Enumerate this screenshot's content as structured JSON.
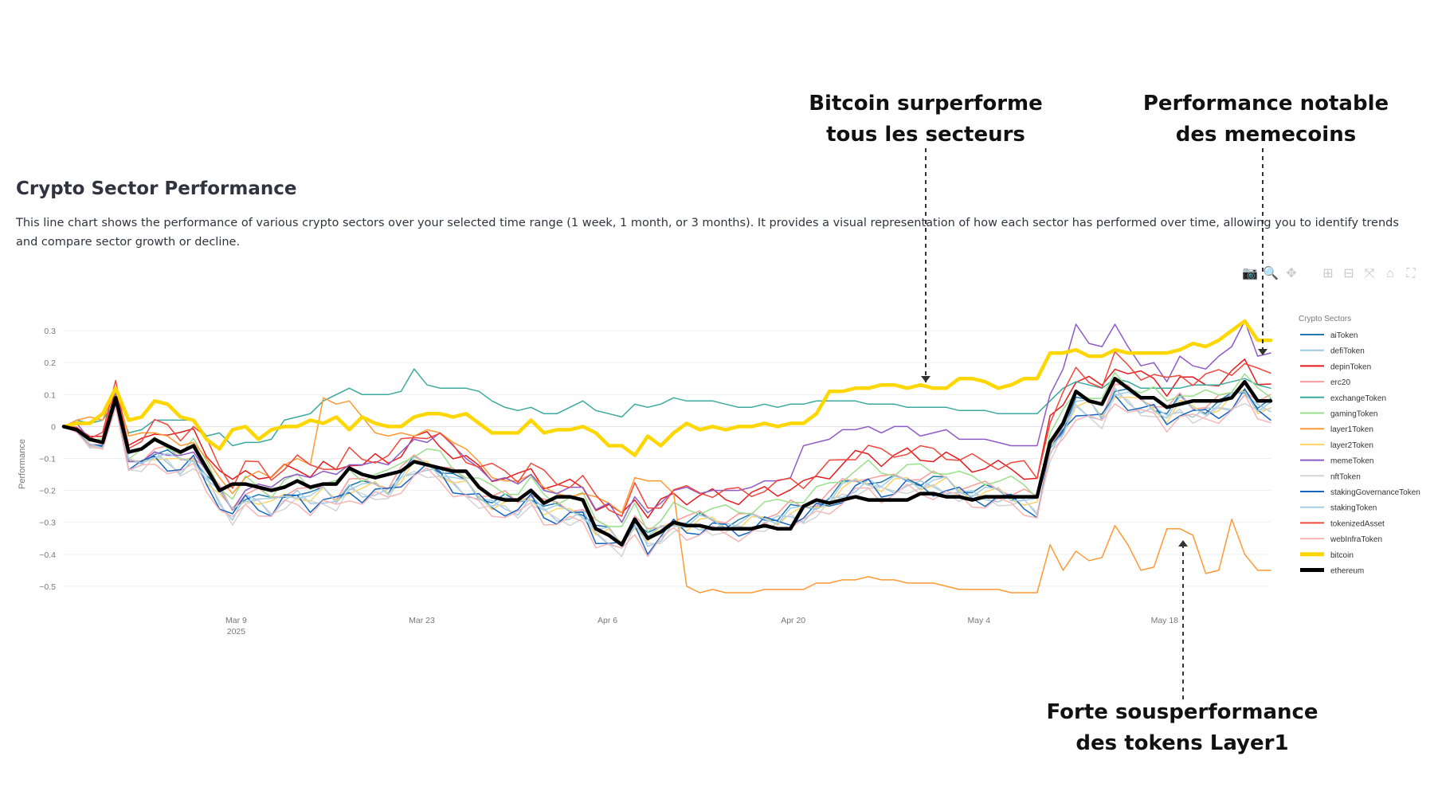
{
  "title": "Crypto Sector Performance",
  "description": "This line chart shows the performance of various crypto sectors over your selected time range (1 week, 1 month, or 3 months). It provides a visual representation of how each sector has performed over time, allowing you to identify trends and compare sector growth or decline.",
  "annotations": [
    {
      "line1": "Bitcoin surperforme",
      "line2": "tous les secteurs",
      "target": "bitcoin"
    },
    {
      "line1": "Performance notable",
      "line2": "des memecoins",
      "target": "memeToken"
    },
    {
      "line1": "Forte sousperformance",
      "line2": "des tokens Layer1",
      "target": "layer1Token"
    }
  ],
  "toolbar": [
    {
      "name": "camera",
      "glyph": "📷"
    },
    {
      "name": "zoom",
      "glyph": "🔍"
    },
    {
      "name": "pan",
      "glyph": "✥"
    },
    {
      "name": "zoom-in",
      "glyph": "⊞"
    },
    {
      "name": "zoom-out",
      "glyph": "⊟"
    },
    {
      "name": "autoscale",
      "glyph": "⤧"
    },
    {
      "name": "reset-axes",
      "glyph": "⌂"
    },
    {
      "name": "fullscreen",
      "glyph": "⛶"
    }
  ],
  "chart_data": {
    "type": "line",
    "ylabel": "Performance",
    "legend_title": "Crypto Sectors",
    "ylim": [
      -0.56,
      0.35
    ],
    "yticks": [
      0.3,
      0.2,
      0.1,
      0,
      -0.1,
      -0.2,
      -0.3,
      -0.4,
      -0.5
    ],
    "ytick_labels": [
      "0.3",
      "0.2",
      "0.1",
      "0",
      "−0.1",
      "−0.2",
      "−0.3",
      "−0.4",
      "−0.5"
    ],
    "x_start": "2025-02-24",
    "x_end": "2025-05-26",
    "xticks": [
      {
        "date": "2025-03-09",
        "label": "Mar 9",
        "sublabel": "2025"
      },
      {
        "date": "2025-03-23",
        "label": "Mar 23",
        "sublabel": ""
      },
      {
        "date": "2025-04-06",
        "label": "Apr 6",
        "sublabel": ""
      },
      {
        "date": "2025-04-20",
        "label": "Apr 20",
        "sublabel": ""
      },
      {
        "date": "2025-05-04",
        "label": "May 4",
        "sublabel": ""
      },
      {
        "date": "2025-05-18",
        "label": "May 18",
        "sublabel": ""
      }
    ],
    "reference": [
      0,
      -0.01,
      -0.05,
      -0.05,
      0.1,
      -0.1,
      -0.09,
      -0.06,
      -0.07,
      -0.09,
      -0.07,
      -0.13,
      -0.19,
      -0.24,
      -0.19,
      -0.2,
      -0.22,
      -0.19,
      -0.18,
      -0.2,
      -0.18,
      -0.2,
      -0.16,
      -0.17,
      -0.16,
      -0.17,
      -0.13,
      -0.09,
      -0.09,
      -0.11,
      -0.14,
      -0.16,
      -0.19,
      -0.21,
      -0.21,
      -0.22,
      -0.19,
      -0.23,
      -0.24,
      -0.24,
      -0.24,
      -0.3,
      -0.31,
      -0.34,
      -0.27,
      -0.33,
      -0.3,
      -0.27,
      -0.28,
      -0.27,
      -0.27,
      -0.28,
      -0.28,
      -0.27,
      -0.26,
      -0.26,
      -0.24,
      -0.24,
      -0.22,
      -0.2,
      -0.17,
      -0.15,
      -0.14,
      -0.16,
      -0.15,
      -0.14,
      -0.15,
      -0.15,
      -0.15,
      -0.17,
      -0.18,
      -0.18,
      -0.18,
      -0.19,
      -0.2,
      -0.22,
      -0.04,
      0.02,
      0.1,
      0.09,
      0.06,
      0.14,
      0.12,
      0.1,
      0.09,
      0.06,
      0.1,
      0.08,
      0.08,
      0.09,
      0.11,
      0.14,
      0.09,
      0.09
    ],
    "series": [
      {
        "name": "aiToken",
        "color": "#1f77b4",
        "width": 1.5,
        "offset": -0.02,
        "phase": 0,
        "amp": 0.02
      },
      {
        "name": "defiToken",
        "color": "#9ecae1",
        "width": 1.5,
        "offset": -0.04,
        "phase": 1,
        "amp": 0.02
      },
      {
        "name": "depinToken",
        "color": "#e41a1c",
        "width": 1.5,
        "offset": 0.055,
        "phase": 2,
        "amp": 0.02
      },
      {
        "name": "erc20",
        "color": "#fb9a99",
        "width": 1.5,
        "offset": -0.01,
        "phase": 3,
        "amp": 0.02
      },
      {
        "name": "exchangeToken",
        "color": "#3ba99c",
        "width": 1.5,
        "special": "exchange",
        "values": [
          0,
          0.02,
          0.01,
          0.02,
          0.08,
          -0.02,
          -0.01,
          0.02,
          0.02,
          0.02,
          0.02,
          -0.03,
          -0.02,
          -0.06,
          -0.05,
          -0.05,
          -0.04,
          0.02,
          0.03,
          0.04,
          0.08,
          0.1,
          0.12,
          0.1,
          0.1,
          0.1,
          0.11,
          0.18,
          0.13,
          0.12,
          0.12,
          0.12,
          0.11,
          0.08,
          0.06,
          0.05,
          0.06,
          0.04,
          0.04,
          0.06,
          0.08,
          0.05,
          0.04,
          0.03,
          0.07,
          0.06,
          0.07,
          0.09,
          0.08,
          0.08,
          0.08,
          0.07,
          0.06,
          0.06,
          0.07,
          0.06,
          0.07,
          0.07,
          0.08,
          0.08,
          0.08,
          0.08,
          0.07,
          0.07,
          0.07,
          0.06,
          0.06,
          0.06,
          0.06,
          0.05,
          0.05,
          0.05,
          0.04,
          0.04,
          0.04,
          0.04,
          0.08,
          0.12,
          0.14,
          0.13,
          0.12,
          0.15,
          0.14,
          0.12,
          0.12,
          0.12,
          0.12,
          0.13,
          0.13,
          0.13,
          0.14,
          0.15,
          0.13,
          0.12
        ]
      },
      {
        "name": "gamingToken",
        "color": "#98df8a",
        "width": 1.5,
        "offset": 0.015,
        "phase": 4,
        "amp": 0.02
      },
      {
        "name": "layer1Token",
        "color": "#ff9933",
        "width": 1.5,
        "special": "layer1",
        "values": [
          0,
          0.02,
          0.03,
          0.02,
          0.12,
          -0.03,
          -0.02,
          -0.02,
          -0.03,
          -0.06,
          -0.05,
          -0.1,
          -0.16,
          -0.21,
          -0.16,
          -0.14,
          -0.16,
          -0.12,
          -0.1,
          -0.12,
          0.09,
          0.07,
          0.08,
          0.03,
          -0.02,
          -0.03,
          -0.02,
          -0.03,
          -0.01,
          -0.02,
          -0.05,
          -0.07,
          -0.11,
          -0.16,
          -0.17,
          -0.17,
          -0.15,
          -0.19,
          -0.21,
          -0.22,
          -0.21,
          -0.22,
          -0.24,
          -0.27,
          -0.16,
          -0.17,
          -0.17,
          -0.21,
          -0.5,
          -0.52,
          -0.51,
          -0.52,
          -0.52,
          -0.52,
          -0.51,
          -0.51,
          -0.51,
          -0.51,
          -0.49,
          -0.49,
          -0.48,
          -0.48,
          -0.47,
          -0.48,
          -0.48,
          -0.49,
          -0.49,
          -0.49,
          -0.5,
          -0.51,
          -0.51,
          -0.51,
          -0.51,
          -0.52,
          -0.52,
          -0.52,
          -0.37,
          -0.45,
          -0.39,
          -0.42,
          -0.41,
          -0.31,
          -0.37,
          -0.45,
          -0.44,
          -0.32,
          -0.32,
          -0.34,
          -0.46,
          -0.45,
          -0.29,
          -0.4,
          -0.45,
          -0.45
        ]
      },
      {
        "name": "layer2Token",
        "color": "#fdd365",
        "width": 1.5,
        "offset": -0.03,
        "phase": 5,
        "amp": 0.02
      },
      {
        "name": "memeToken",
        "color": "#8e5bc5",
        "width": 1.5,
        "special": "meme",
        "values": [
          0,
          0.01,
          -0.04,
          -0.05,
          0.11,
          -0.11,
          -0.11,
          -0.08,
          -0.09,
          -0.09,
          -0.08,
          -0.14,
          -0.2,
          -0.26,
          -0.2,
          -0.18,
          -0.19,
          -0.16,
          -0.15,
          -0.16,
          -0.14,
          -0.15,
          -0.12,
          -0.12,
          -0.11,
          -0.12,
          -0.08,
          -0.04,
          -0.05,
          -0.02,
          -0.06,
          -0.1,
          -0.13,
          -0.17,
          -0.16,
          -0.18,
          -0.15,
          -0.2,
          -0.21,
          -0.19,
          -0.19,
          -0.26,
          -0.24,
          -0.3,
          -0.22,
          -0.27,
          -0.24,
          -0.2,
          -0.19,
          -0.21,
          -0.2,
          -0.2,
          -0.2,
          -0.19,
          -0.17,
          -0.17,
          -0.16,
          -0.06,
          -0.05,
          -0.04,
          -0.01,
          -0.01,
          0.0,
          -0.02,
          0.0,
          0.0,
          -0.03,
          -0.02,
          -0.01,
          -0.04,
          -0.04,
          -0.04,
          -0.05,
          -0.06,
          -0.06,
          -0.06,
          0.1,
          0.18,
          0.32,
          0.26,
          0.25,
          0.32,
          0.25,
          0.19,
          0.2,
          0.14,
          0.22,
          0.19,
          0.18,
          0.22,
          0.25,
          0.33,
          0.22,
          0.23
        ]
      },
      {
        "name": "nftToken",
        "color": "#d3d3d3",
        "width": 1.5,
        "offset": -0.05,
        "phase": 6,
        "amp": 0.02
      },
      {
        "name": "stakingGovernanceToken",
        "color": "#1565c0",
        "width": 1.5,
        "offset": -0.045,
        "phase": 7,
        "amp": 0.025
      },
      {
        "name": "stakingToken",
        "color": "#a6cee3",
        "width": 1.5,
        "offset": -0.025,
        "phase": 8,
        "amp": 0.02
      },
      {
        "name": "tokenizedAsset",
        "color": "#f0463c",
        "width": 1.5,
        "offset": 0.07,
        "phase": 9,
        "amp": 0.025
      },
      {
        "name": "webInfraToken",
        "color": "#f8b4b4",
        "width": 1.5,
        "offset": -0.06,
        "phase": 10,
        "amp": 0.02
      },
      {
        "name": "bitcoin",
        "color": "#ffd700",
        "width": 4.5,
        "special": "bitcoin",
        "values": [
          0,
          0.01,
          0.01,
          0.04,
          0.12,
          0.02,
          0.03,
          0.08,
          0.07,
          0.03,
          0.02,
          -0.04,
          -0.07,
          -0.01,
          0.0,
          -0.04,
          -0.01,
          0.0,
          0.0,
          0.02,
          0.01,
          0.03,
          -0.01,
          0.03,
          0.01,
          0.0,
          0.0,
          0.03,
          0.04,
          0.04,
          0.03,
          0.04,
          0.01,
          -0.02,
          -0.02,
          -0.02,
          0.02,
          -0.02,
          -0.01,
          -0.01,
          0.0,
          -0.02,
          -0.06,
          -0.06,
          -0.09,
          -0.03,
          -0.06,
          -0.02,
          0.01,
          -0.01,
          0.0,
          -0.01,
          0.0,
          0.0,
          0.01,
          0.0,
          0.01,
          0.01,
          0.04,
          0.11,
          0.11,
          0.12,
          0.12,
          0.13,
          0.13,
          0.12,
          0.13,
          0.12,
          0.12,
          0.15,
          0.15,
          0.14,
          0.12,
          0.13,
          0.15,
          0.15,
          0.23,
          0.23,
          0.24,
          0.22,
          0.22,
          0.24,
          0.23,
          0.23,
          0.23,
          0.23,
          0.24,
          0.26,
          0.25,
          0.27,
          0.3,
          0.33,
          0.27,
          0.27
        ]
      },
      {
        "name": "ethereum",
        "color": "#000000",
        "width": 4.5,
        "special": "ethereum",
        "values": [
          0,
          -0.01,
          -0.04,
          -0.05,
          0.09,
          -0.08,
          -0.07,
          -0.04,
          -0.06,
          -0.08,
          -0.06,
          -0.13,
          -0.2,
          -0.18,
          -0.18,
          -0.19,
          -0.2,
          -0.19,
          -0.17,
          -0.19,
          -0.18,
          -0.18,
          -0.13,
          -0.15,
          -0.16,
          -0.15,
          -0.14,
          -0.11,
          -0.12,
          -0.13,
          -0.14,
          -0.14,
          -0.19,
          -0.22,
          -0.23,
          -0.23,
          -0.2,
          -0.24,
          -0.22,
          -0.22,
          -0.23,
          -0.32,
          -0.34,
          -0.37,
          -0.29,
          -0.35,
          -0.33,
          -0.3,
          -0.31,
          -0.31,
          -0.32,
          -0.32,
          -0.32,
          -0.32,
          -0.31,
          -0.32,
          -0.32,
          -0.25,
          -0.23,
          -0.24,
          -0.23,
          -0.22,
          -0.23,
          -0.23,
          -0.23,
          -0.23,
          -0.21,
          -0.21,
          -0.22,
          -0.22,
          -0.23,
          -0.22,
          -0.22,
          -0.22,
          -0.22,
          -0.22,
          -0.05,
          0.01,
          0.11,
          0.08,
          0.07,
          0.15,
          0.12,
          0.09,
          0.09,
          0.06,
          0.07,
          0.08,
          0.08,
          0.08,
          0.09,
          0.14,
          0.08,
          0.08
        ]
      }
    ]
  }
}
